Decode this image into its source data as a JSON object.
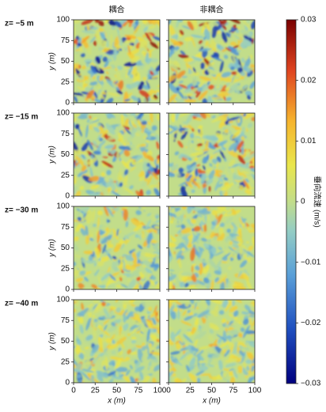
{
  "chart_data": {
    "type": "heatmap",
    "columns": [
      "耦合",
      "非耦合"
    ],
    "rows": [
      "z= −5 m",
      "z= −15 m",
      "z= −30 m",
      "z= −40 m"
    ],
    "xlabel": "x (m)",
    "ylabel": "y (m)",
    "xlim": [
      0,
      100
    ],
    "ylim": [
      0,
      100
    ],
    "xticks": [
      0,
      25,
      50,
      75,
      100
    ],
    "yticks": [
      0,
      25,
      50,
      75,
      100
    ],
    "colorbar": {
      "label": "垂向流速 (m/s)",
      "lim": [
        -0.03,
        0.03
      ],
      "ticks": [
        {
          "value": -0.03,
          "label": "−0.03"
        },
        {
          "value": -0.02,
          "label": "−0.02"
        },
        {
          "value": -0.01,
          "label": "−0.01"
        },
        0,
        0.01,
        0.02,
        0.03
      ]
    }
  }
}
